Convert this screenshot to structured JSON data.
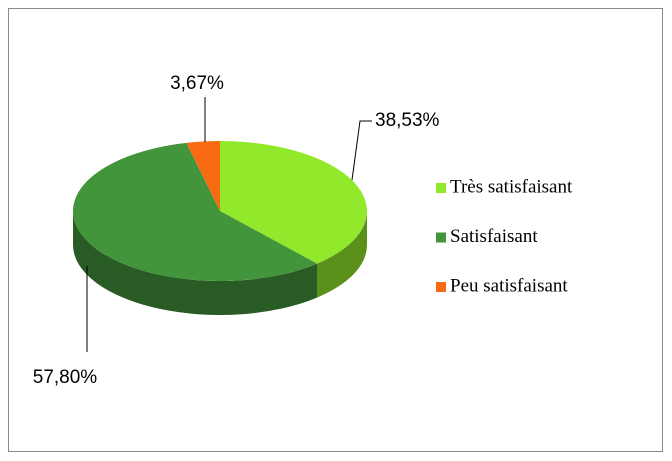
{
  "chart_data": {
    "type": "pie",
    "categories": [
      "Très satisfaisant",
      "Satisfaisant",
      "Peu satisfaisant"
    ],
    "values": [
      38.53,
      57.8,
      3.67
    ],
    "value_labels": [
      "38,53%",
      "57,80%",
      "3,67%"
    ],
    "colors": [
      "#92e82a",
      "#42953a",
      "#f86b12"
    ],
    "legend": "right"
  }
}
